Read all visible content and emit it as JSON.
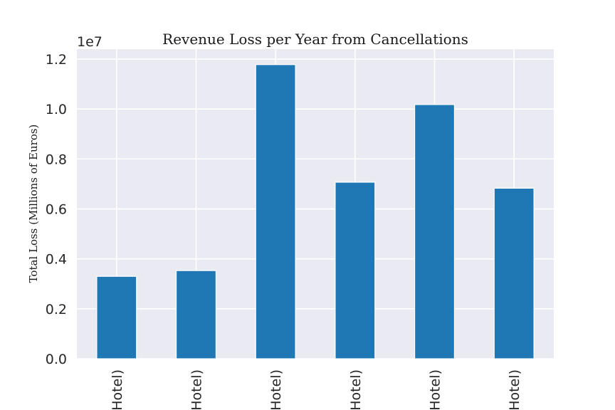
{
  "chart_data": {
    "type": "bar",
    "title": "Revenue Loss per Year from Cancellations",
    "ylabel": "Total Loss (Millions of Euros)",
    "xlabel": "",
    "y_offset_label": "1e7",
    "categories": [
      "Hotel)",
      "Hotel)",
      "Hotel)",
      "Hotel)",
      "Hotel)",
      "Hotel)"
    ],
    "values": [
      3300000,
      3530000,
      11780000,
      7070000,
      10180000,
      6830000
    ],
    "ylim": [
      0,
      12400000
    ],
    "yticks": [
      0,
      2000000,
      4000000,
      6000000,
      8000000,
      10000000,
      12000000
    ],
    "ytick_labels": [
      "0.0",
      "0.2",
      "0.4",
      "0.6",
      "0.8",
      "1.0",
      "1.2"
    ],
    "grid": true,
    "colors": {
      "bar": "#1f77b4",
      "plot_background": "#eaeaf2",
      "grid": "#ffffff"
    }
  }
}
